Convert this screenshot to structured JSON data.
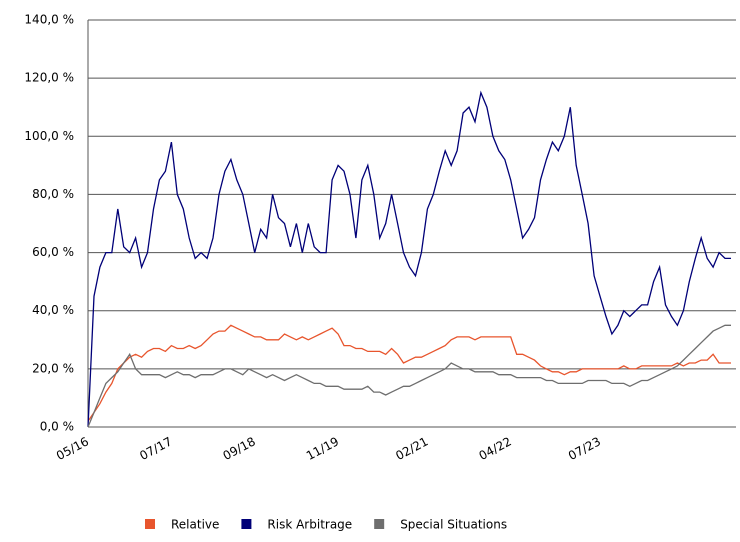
{
  "chart_data": {
    "type": "line",
    "categories": [
      "05/16",
      null,
      null,
      null,
      null,
      null,
      null,
      null,
      null,
      null,
      null,
      null,
      null,
      null,
      "07/17",
      null,
      null,
      null,
      null,
      null,
      null,
      null,
      null,
      null,
      null,
      null,
      null,
      null,
      "09/18",
      null,
      null,
      null,
      null,
      null,
      null,
      null,
      null,
      null,
      null,
      null,
      null,
      null,
      "11/19",
      null,
      null,
      null,
      null,
      null,
      null,
      null,
      null,
      null,
      null,
      null,
      null,
      null,
      null,
      "02/21",
      null,
      null,
      null,
      null,
      null,
      null,
      null,
      null,
      null,
      null,
      null,
      null,
      null,
      "04/22",
      null,
      null,
      null,
      null,
      null,
      null,
      null,
      null,
      null,
      null,
      null,
      null,
      null,
      null,
      "07/23",
      null,
      null,
      null,
      null,
      null,
      null,
      null,
      null,
      null,
      null,
      null,
      null,
      null,
      null,
      null,
      null,
      null,
      null,
      null,
      null,
      null,
      null
    ],
    "series": [
      {
        "name": "Relative",
        "color": "#e8552d",
        "values": [
          2,
          5,
          8,
          12,
          15,
          20,
          22,
          24,
          25,
          24,
          26,
          27,
          27,
          26,
          28,
          27,
          27,
          28,
          27,
          28,
          30,
          32,
          33,
          33,
          35,
          34,
          33,
          32,
          31,
          31,
          30,
          30,
          30,
          32,
          31,
          30,
          31,
          30,
          31,
          32,
          33,
          34,
          32,
          28,
          28,
          27,
          27,
          26,
          26,
          26,
          25,
          27,
          25,
          22,
          23,
          24,
          24,
          25,
          26,
          27,
          28,
          30,
          31,
          31,
          31,
          30,
          31,
          31,
          31,
          31,
          31,
          31,
          25,
          25,
          24,
          23,
          21,
          20,
          19,
          19,
          18,
          19,
          19,
          20,
          20,
          20,
          20,
          20,
          20,
          20,
          21,
          20,
          20,
          21,
          21,
          21,
          21,
          21,
          21,
          22,
          21,
          22,
          22,
          23,
          23,
          25,
          22,
          22,
          22
        ]
      },
      {
        "name": "Risk Arbitrage",
        "color": "#000078",
        "values": [
          0,
          45,
          55,
          60,
          60,
          75,
          62,
          60,
          65,
          55,
          60,
          75,
          85,
          88,
          98,
          80,
          75,
          65,
          58,
          60,
          58,
          65,
          80,
          88,
          92,
          85,
          80,
          70,
          60,
          68,
          65,
          80,
          72,
          70,
          62,
          70,
          60,
          70,
          62,
          60,
          60,
          85,
          90,
          88,
          80,
          65,
          85,
          90,
          80,
          65,
          70,
          80,
          70,
          60,
          55,
          52,
          60,
          75,
          80,
          88,
          95,
          90,
          95,
          108,
          110,
          105,
          115,
          110,
          100,
          95,
          92,
          85,
          75,
          65,
          68,
          72,
          85,
          92,
          98,
          95,
          100,
          110,
          90,
          80,
          70,
          52,
          45,
          38,
          32,
          35,
          40,
          38,
          40,
          42,
          42,
          50,
          55,
          42,
          38,
          35,
          40,
          50,
          58,
          65,
          58,
          55,
          60,
          58,
          58
        ]
      },
      {
        "name": "Special Situations",
        "color": "#6e6e6e",
        "values": [
          0,
          5,
          10,
          15,
          17,
          19,
          22,
          25,
          20,
          18,
          18,
          18,
          18,
          17,
          18,
          19,
          18,
          18,
          17,
          18,
          18,
          18,
          19,
          20,
          20,
          19,
          18,
          20,
          19,
          18,
          17,
          18,
          17,
          16,
          17,
          18,
          17,
          16,
          15,
          15,
          14,
          14,
          14,
          13,
          13,
          13,
          13,
          14,
          12,
          12,
          11,
          12,
          13,
          14,
          14,
          15,
          16,
          17,
          18,
          19,
          20,
          22,
          21,
          20,
          20,
          19,
          19,
          19,
          19,
          18,
          18,
          18,
          17,
          17,
          17,
          17,
          17,
          16,
          16,
          15,
          15,
          15,
          15,
          15,
          16,
          16,
          16,
          16,
          15,
          15,
          15,
          14,
          15,
          16,
          16,
          17,
          18,
          19,
          20,
          21,
          23,
          25,
          27,
          29,
          31,
          33,
          34,
          35,
          35
        ]
      }
    ],
    "ylim": [
      0,
      140
    ],
    "yticks": [
      {
        "value": 0,
        "label": "0,0 %"
      },
      {
        "value": 20,
        "label": "20,0 %"
      },
      {
        "value": 40,
        "label": "40,0 %"
      },
      {
        "value": 60,
        "label": "60,0 %"
      },
      {
        "value": 80,
        "label": "80,0 %"
      },
      {
        "value": 100,
        "label": "100,0 %"
      },
      {
        "value": 120,
        "label": "120,0 %"
      },
      {
        "value": 140,
        "label": "140,0 %"
      }
    ],
    "grid": true
  }
}
